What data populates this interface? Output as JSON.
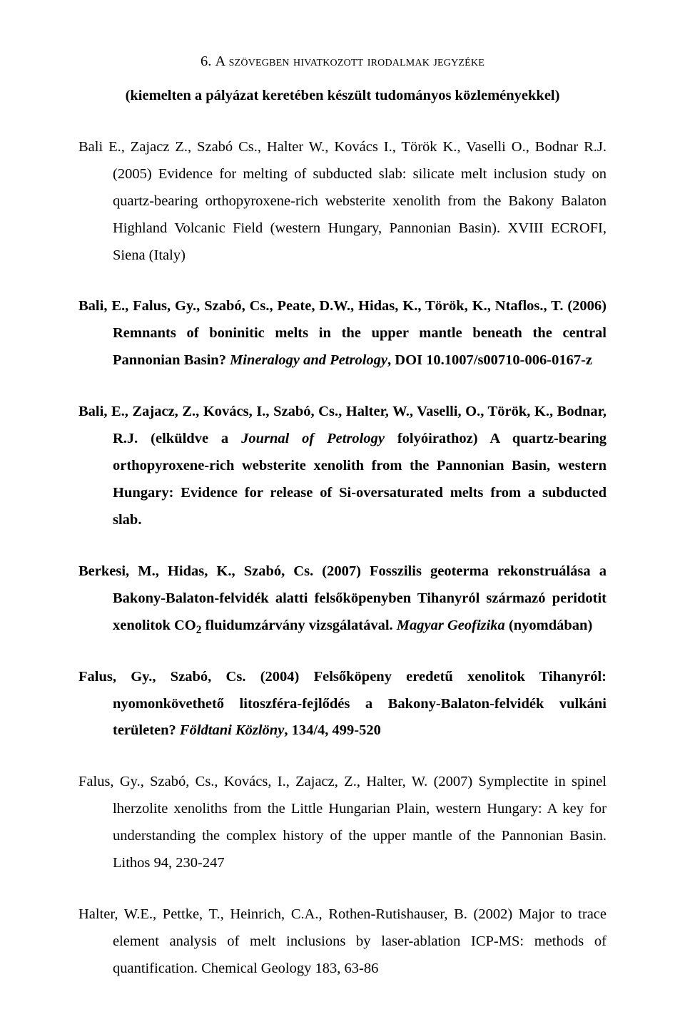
{
  "heading": {
    "number": "6. ",
    "title": "A szövegben hivatkozott irodalmak jegyzéke"
  },
  "subheading": "(kiemelten a pályázat keretében készült tudományos közleményekkel)",
  "refs": {
    "r1": {
      "authors": "Bali E., Zajacz Z., Szabó Cs., Halter W., Kovács I., Török K., Vaselli O., Bodnar R.J. (2005) Evidence for melting of subducted slab: silicate melt inclusion study on quartz-bearing orthopyroxene-rich websterite xenolith from the Bakony Balaton Highland Volcanic Field (western Hungary, Pannonian Basin). XVIII ECROFI, Siena (Italy)"
    },
    "r2": {
      "authors_bold": "Bali, E., Falus, Gy., Szabó, Cs., Peate, D.W., Hidas, K., Török, K., Ntaflos., T. (2006) Remnants of boninitic melts in the upper mantle beneath the central Pannonian Basin?",
      "journal": "Mineralogy and Petrology",
      "tail_bold": ", DOI 10.1007/s00710-006-0167-z"
    },
    "r3": {
      "authors_bold1": "Bali, E., Zajacz, Z., Kovács, I., Szabó, Cs., Halter, W., Vaselli, O., Török, K., Bodnar, R.J. (elküldve a ",
      "journal": "Journal of Petrology",
      "authors_bold2": " folyóirathoz) A quartz-bearing orthopyroxene-rich websterite xenolith from the Pannonian Basin, western Hungary: Evidence for release of Si-oversaturated melts from a subducted slab."
    },
    "r4": {
      "authors_bold": "Berkesi, M., Hidas, K., Szabó, Cs. (2007) Fosszilis geoterma rekonstruálása a Bakony-Balaton-felvidék alatti felsőköpenyben Tihanyról származó peridotit xenolitok CO",
      "sub": "2",
      "tail_bold": " fluidumzárvány vizsgálatával.",
      "journal": "Magyar Geofizika",
      "after_journal_bold": " (nyomdában)"
    },
    "r5": {
      "authors_bold": "Falus, Gy., Szabó, Cs. (2004) Felsőköpeny eredetű xenolitok Tihanyról: nyomonkövethető litoszféra-fejlődés a Bakony-Balaton-felvidék vulkáni területen? ",
      "journal": "Földtani Közlöny",
      "tail_bold": ", 134/4, 499-520"
    },
    "r6": {
      "text": "Falus, Gy., Szabó, Cs., Kovács, I., Zajacz, Z., Halter, W. (2007) Symplectite in spinel lherzolite xenoliths from the Little Hungarian Plain, western Hungary: A key for understanding the complex history of the upper mantle of the Pannonian Basin. Lithos 94, 230-247"
    },
    "r7": {
      "text": "Halter, W.E., Pettke, T., Heinrich, C.A., Rothen-Rutishauser, B. (2002) Major to trace element analysis of melt inclusions by laser-ablation ICP-MS: methods of quantification.  Chemical Geology 183, 63-86"
    }
  }
}
